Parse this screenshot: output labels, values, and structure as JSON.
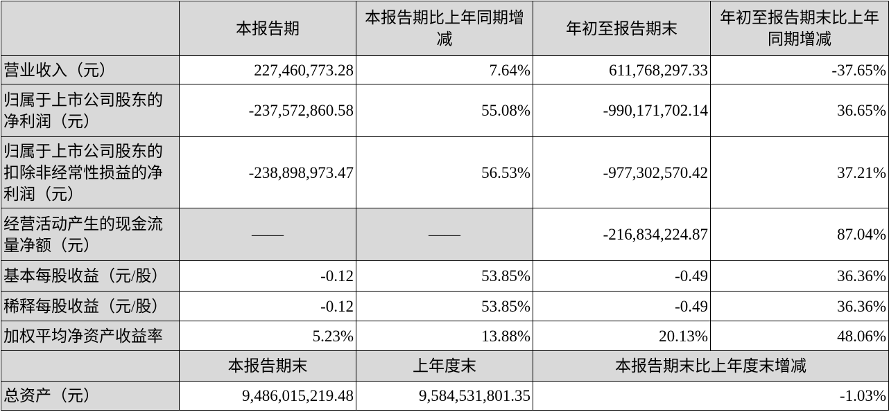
{
  "table": {
    "header": [
      "本报告期",
      "本报告期比上年同期增减",
      "年初至报告期末",
      "年初至报告期末比上年同期增减"
    ],
    "rows": [
      {
        "label": "营业收入（元）",
        "cells": [
          "227,460,773.28",
          "7.64%",
          "611,768,297.33",
          "-37.65%"
        ]
      },
      {
        "label": "归属于上市公司股东的净利润（元）",
        "cells": [
          "-237,572,860.58",
          "55.08%",
          "-990,171,702.14",
          "36.65%"
        ]
      },
      {
        "label": "归属于上市公司股东的扣除非经常性损益的净利润（元）",
        "cells": [
          "-238,898,973.47",
          "56.53%",
          "-977,302,570.42",
          "37.21%"
        ]
      },
      {
        "label": "经营活动产生的现金流量净额（元）",
        "cells": [
          "——",
          "——",
          "-216,834,224.87",
          "87.04%"
        ]
      },
      {
        "label": "基本每股收益（元/股）",
        "cells": [
          "-0.12",
          "53.85%",
          "-0.49",
          "36.36%"
        ]
      },
      {
        "label": "稀释每股收益（元/股）",
        "cells": [
          "-0.12",
          "53.85%",
          "-0.49",
          "36.36%"
        ]
      },
      {
        "label": "加权平均净资产收益率",
        "cells": [
          "5.23%",
          "13.88%",
          "20.13%",
          "48.06%"
        ]
      }
    ],
    "header2": [
      "本报告期末",
      "上年度末",
      "本报告期末比上年度末增减"
    ],
    "total": {
      "label": "总资产（元）",
      "cells": [
        "9,486,015,219.48",
        "9,584,531,801.35",
        "-1.03%"
      ]
    }
  }
}
